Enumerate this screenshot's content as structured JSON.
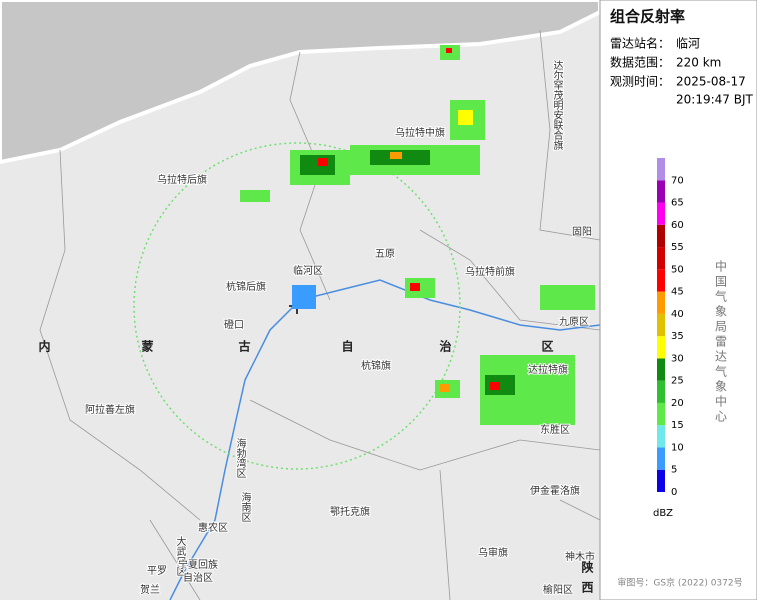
{
  "panel": {
    "title": "组合反射率",
    "station_label": "雷达站名：",
    "station": "临河",
    "range_label": "数据范围：",
    "range": "220 km",
    "time_label": "观测时间：",
    "date": "2025-08-17",
    "time": "20:19:47 BJT"
  },
  "legend": {
    "unit": "dBZ",
    "source": "中国气象局雷达气象中心",
    "levels": [
      {
        "value": 0,
        "color": "#0b00e8"
      },
      {
        "value": 5,
        "color": "#3a9cff"
      },
      {
        "value": 10,
        "color": "#6de9e9"
      },
      {
        "value": 15,
        "color": "#5ee84a"
      },
      {
        "value": 20,
        "color": "#2ec02e"
      },
      {
        "value": 25,
        "color": "#118a11"
      },
      {
        "value": 30,
        "color": "#ffff00"
      },
      {
        "value": 35,
        "color": "#e0c000"
      },
      {
        "value": 40,
        "color": "#ff9a00"
      },
      {
        "value": 45,
        "color": "#ff0000"
      },
      {
        "value": 50,
        "color": "#d20000"
      },
      {
        "value": 55,
        "color": "#b00000"
      },
      {
        "value": 60,
        "color": "#ff00f0"
      },
      {
        "value": 65,
        "color": "#9a00b4"
      },
      {
        "value": 70,
        "color": "#b08ee8"
      }
    ]
  },
  "map": {
    "labels": [
      "乌拉特中旗",
      "乌拉特后旗",
      "达尔罕茂明安联合旗",
      "固阳",
      "五原",
      "临河区",
      "杭锦后旗",
      "乌拉特前旗",
      "九原区",
      "磴口",
      "内",
      "蒙",
      "古",
      "自",
      "治",
      "区",
      "杭锦旗",
      "达拉特旗",
      "阿拉善左旗",
      "海勃湾区",
      "东胜区",
      "海南区",
      "伊金霍洛旗",
      "鄂托克旗",
      "惠农区",
      "大武口区",
      "平罗",
      "宁夏回族",
      "自治区",
      "乌审旗",
      "神木市",
      "陕",
      "西",
      "榆阳区",
      "贺兰"
    ]
  },
  "footer": {
    "approval": "审图号：GS京 (2022) 0372号"
  }
}
